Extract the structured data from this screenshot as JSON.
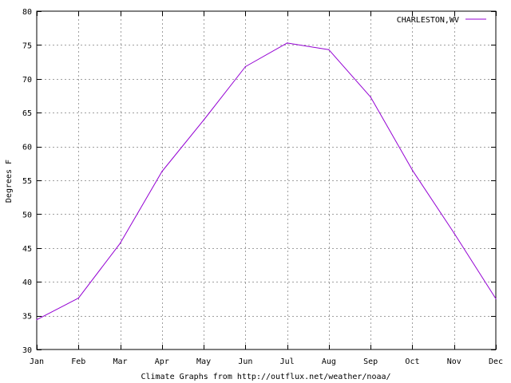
{
  "chart_data": {
    "type": "line",
    "title": "",
    "xlabel": "Climate Graphs from http://outflux.net/weather/noaa/",
    "ylabel": "Degrees F",
    "categories": [
      "Jan",
      "Feb",
      "Mar",
      "Apr",
      "May",
      "Jun",
      "Jul",
      "Aug",
      "Sep",
      "Oct",
      "Nov",
      "Dec"
    ],
    "series": [
      {
        "name": "CHARLESTON,WV",
        "color": "#9400d3",
        "values": [
          34.4,
          37.6,
          45.7,
          56.3,
          63.9,
          71.8,
          75.3,
          74.3,
          67.3,
          56.5,
          47.2,
          37.5
        ]
      }
    ],
    "ylim": [
      30,
      80
    ],
    "yticks": [
      "30",
      "35",
      "40",
      "45",
      "50",
      "55",
      "60",
      "65",
      "70",
      "75",
      "80"
    ],
    "grid": true,
    "legend_position": "top-right"
  }
}
